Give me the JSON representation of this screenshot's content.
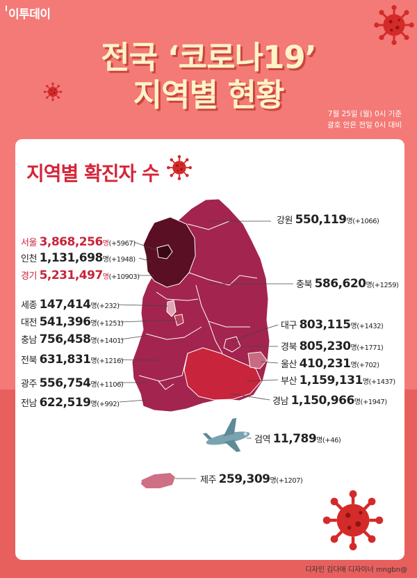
{
  "brand": "이투데이",
  "title_line1": "전국 ‘코로나19’",
  "title_line2": "지역별 현황",
  "basis_line1": "7월 25일 (월) 0시 기준",
  "basis_line2": "괄호 안은 전일 0시 대비",
  "subtitle": "지역별 확진자 수",
  "unit": "명",
  "regions": [
    {
      "name": "강원",
      "value": "550,119",
      "change": "(+1066)"
    },
    {
      "name": "서울",
      "value": "3,868,256",
      "change": "(+5967)"
    },
    {
      "name": "인천",
      "value": "1,131,698",
      "change": "(+1948)"
    },
    {
      "name": "경기",
      "value": "5,231,497",
      "change": "(+10903)"
    },
    {
      "name": "충북",
      "value": "586,620",
      "change": "(+1259)"
    },
    {
      "name": "세종",
      "value": "147,414",
      "change": "(+232)"
    },
    {
      "name": "대전",
      "value": "541,396",
      "change": "(+1251)"
    },
    {
      "name": "대구",
      "value": "803,115",
      "change": "(+1432)"
    },
    {
      "name": "충남",
      "value": "756,458",
      "change": "(+1401)"
    },
    {
      "name": "경북",
      "value": "805,230",
      "change": "(+1771)"
    },
    {
      "name": "전북",
      "value": "631,831",
      "change": "(+1216)"
    },
    {
      "name": "울산",
      "value": "410,231",
      "change": "(+702)"
    },
    {
      "name": "광주",
      "value": "556,754",
      "change": "(+1106)"
    },
    {
      "name": "부산",
      "value": "1,159,131",
      "change": "(+1437)"
    },
    {
      "name": "전남",
      "value": "622,519",
      "change": "(+992)"
    },
    {
      "name": "경남",
      "value": "1,150,966",
      "change": "(+1947)"
    },
    {
      "name": "검역",
      "value": "11,789",
      "change": "(+46)"
    },
    {
      "name": "제주",
      "value": "259,309",
      "change": "(+1207)"
    }
  ],
  "credit": "디자인 김다애 디자이너 mngbn@",
  "colors": {
    "background": "#f37a76",
    "title": "#fff3c8",
    "accent": "#d5263a",
    "map_main": "#a3244f",
    "map_capital": "#5a0f24",
    "virus": "#d42a2a"
  },
  "icons": [
    "virus-icon",
    "airplane-icon"
  ]
}
